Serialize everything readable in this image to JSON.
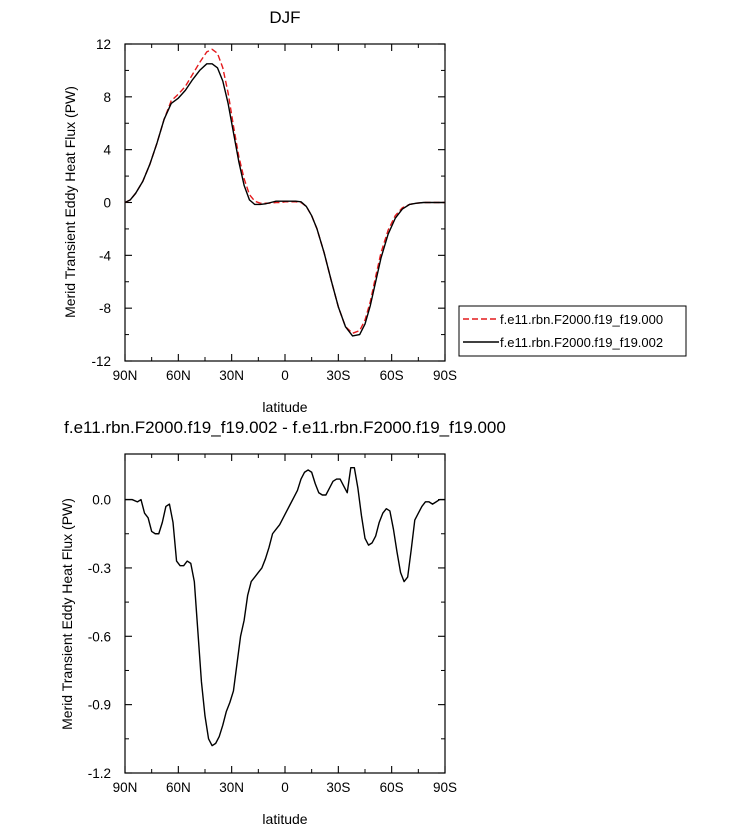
{
  "chart_data": [
    {
      "type": "line",
      "title": "DJF",
      "xlabel": "latitude",
      "ylabel": "Merid Transient Eddy Heat Flux (PW)",
      "xlim": [
        90,
        -90
      ],
      "ylim": [
        -12,
        12
      ],
      "x_ticks": [
        90,
        60,
        30,
        0,
        -30,
        -60,
        -90
      ],
      "x_tick_labels": [
        "90N",
        "60N",
        "30N",
        "0",
        "30S",
        "60S",
        "90S"
      ],
      "y_ticks": [
        12,
        8,
        4,
        0,
        -4,
        -8,
        -12
      ],
      "y_tick_labels": [
        "12",
        "8",
        "4",
        "0",
        "-4",
        "-8",
        "-12"
      ],
      "legend_position": "right",
      "series": [
        {
          "name": "f.e11.rbn.F2000.f19_f19.000",
          "color": "#e41a1c",
          "dash": "dashed",
          "x": [
            90,
            87,
            84,
            80,
            76,
            72,
            68,
            64,
            60,
            56,
            52,
            48,
            44,
            41,
            38,
            35,
            32,
            29,
            26,
            23,
            20,
            17,
            14,
            11,
            8,
            5,
            2,
            0,
            -3,
            -6,
            -9,
            -12,
            -15,
            -18,
            -22,
            -26,
            -30,
            -34,
            -38,
            -42,
            -45,
            -48,
            -51,
            -54,
            -58,
            -62,
            -66,
            -70,
            -74,
            -78,
            -82,
            -86,
            -90
          ],
          "y": [
            0.0,
            0.2,
            0.7,
            1.6,
            2.9,
            4.5,
            6.3,
            7.7,
            8.2,
            8.8,
            9.7,
            10.6,
            11.4,
            11.6,
            11.3,
            10.2,
            8.3,
            5.8,
            3.5,
            1.8,
            0.6,
            0.1,
            -0.05,
            -0.05,
            -0.05,
            0.0,
            0.0,
            0.05,
            0.05,
            0.05,
            0.0,
            -0.3,
            -1.0,
            -2.0,
            -3.8,
            -5.9,
            -7.9,
            -9.4,
            -9.9,
            -9.7,
            -8.9,
            -7.5,
            -5.6,
            -3.8,
            -2.1,
            -1.0,
            -0.4,
            -0.15,
            -0.05,
            0.0,
            0.0,
            0.0,
            0.0
          ]
        },
        {
          "name": "f.e11.rbn.F2000.f19_f19.002",
          "color": "#000000",
          "dash": "solid",
          "x": [
            90,
            87,
            84,
            80,
            76,
            72,
            68,
            64,
            60,
            56,
            52,
            48,
            44,
            41,
            38,
            35,
            32,
            29,
            26,
            23,
            20,
            17,
            14,
            11,
            8,
            5,
            2,
            0,
            -3,
            -6,
            -9,
            -12,
            -15,
            -18,
            -22,
            -26,
            -30,
            -34,
            -38,
            -42,
            -45,
            -48,
            -51,
            -54,
            -58,
            -62,
            -66,
            -70,
            -74,
            -78,
            -82,
            -86,
            -90
          ],
          "y": [
            0.0,
            0.2,
            0.7,
            1.6,
            2.9,
            4.5,
            6.3,
            7.5,
            7.9,
            8.5,
            9.3,
            10.0,
            10.5,
            10.5,
            10.2,
            9.2,
            7.5,
            5.3,
            3.1,
            1.3,
            0.2,
            -0.15,
            -0.15,
            -0.1,
            0.0,
            0.1,
            0.1,
            0.1,
            0.1,
            0.1,
            0.05,
            -0.3,
            -1.0,
            -2.0,
            -3.8,
            -5.9,
            -7.9,
            -9.4,
            -10.1,
            -10.0,
            -9.2,
            -7.8,
            -6.0,
            -4.2,
            -2.4,
            -1.2,
            -0.5,
            -0.15,
            -0.05,
            0.0,
            0.0,
            0.0,
            0.0
          ]
        }
      ]
    },
    {
      "type": "line",
      "title": "f.e11.rbn.F2000.f19_f19.002 - f.e11.rbn.F2000.f19_f19.000",
      "xlabel": "latitude",
      "ylabel": "Merid Transient Eddy Heat Flux (PW)",
      "xlim": [
        90,
        -90
      ],
      "ylim": [
        -1.2,
        0.2
      ],
      "x_ticks": [
        90,
        60,
        30,
        0,
        -30,
        -60,
        -90
      ],
      "x_tick_labels": [
        "90N",
        "60N",
        "30N",
        "0",
        "30S",
        "60S",
        "90S"
      ],
      "y_ticks": [
        0.0,
        -0.3,
        -0.6,
        -0.9,
        -1.2
      ],
      "y_tick_labels": [
        "0.0",
        "-0.3",
        "-0.6",
        "-0.9",
        "-1.2"
      ],
      "series": [
        {
          "color": "#000000",
          "dash": "solid",
          "x": [
            90,
            86,
            83,
            81,
            79,
            77,
            75,
            73,
            71,
            69,
            67,
            65,
            63,
            61,
            59,
            57,
            55,
            53,
            51,
            49,
            47,
            45,
            43,
            41,
            39,
            37,
            35,
            33,
            31,
            29,
            27,
            25,
            23,
            21,
            19,
            17,
            15,
            13,
            11,
            9,
            7,
            5,
            3,
            1,
            -1,
            -3,
            -5,
            -7,
            -9,
            -11,
            -13,
            -15,
            -17,
            -19,
            -21,
            -23,
            -25,
            -27,
            -29,
            -31,
            -33,
            -35,
            -37,
            -39,
            -41,
            -43,
            -45,
            -47,
            -49,
            -51,
            -53,
            -55,
            -57,
            -59,
            -61,
            -63,
            -65,
            -67,
            -69,
            -71,
            -73,
            -75,
            -77,
            -79,
            -81,
            -83,
            -85,
            -87,
            -90
          ],
          "y": [
            0.0,
            0.0,
            -0.01,
            0.0,
            -0.06,
            -0.08,
            -0.14,
            -0.15,
            -0.15,
            -0.1,
            -0.03,
            -0.02,
            -0.1,
            -0.27,
            -0.29,
            -0.29,
            -0.27,
            -0.28,
            -0.36,
            -0.58,
            -0.8,
            -0.95,
            -1.05,
            -1.08,
            -1.07,
            -1.04,
            -0.99,
            -0.93,
            -0.89,
            -0.84,
            -0.72,
            -0.6,
            -0.53,
            -0.42,
            -0.36,
            -0.34,
            -0.32,
            -0.3,
            -0.26,
            -0.21,
            -0.15,
            -0.13,
            -0.11,
            -0.08,
            -0.05,
            -0.02,
            0.01,
            0.04,
            0.09,
            0.12,
            0.13,
            0.12,
            0.07,
            0.03,
            0.02,
            0.02,
            0.05,
            0.08,
            0.09,
            0.09,
            0.06,
            0.03,
            0.14,
            0.14,
            0.05,
            -0.07,
            -0.17,
            -0.2,
            -0.19,
            -0.16,
            -0.1,
            -0.06,
            -0.04,
            -0.05,
            -0.13,
            -0.23,
            -0.32,
            -0.36,
            -0.34,
            -0.22,
            -0.09,
            -0.06,
            -0.03,
            -0.01,
            -0.01,
            -0.02,
            -0.01,
            0.0,
            0.0
          ]
        }
      ]
    }
  ]
}
